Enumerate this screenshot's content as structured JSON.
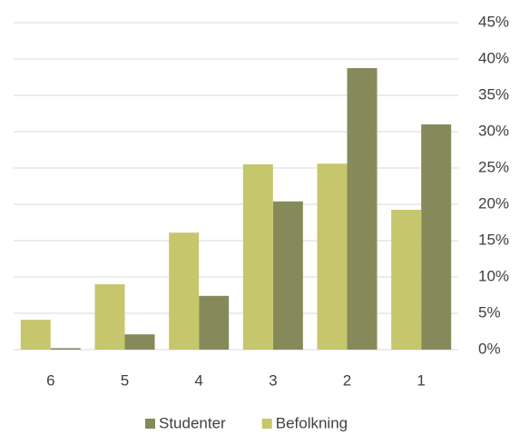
{
  "chart_data": {
    "type": "bar",
    "categories": [
      "6",
      "5",
      "4",
      "3",
      "2",
      "1"
    ],
    "series": [
      {
        "name": "Studenter",
        "color": "#868a5a",
        "values": [
          0.2,
          2.1,
          7.4,
          20.4,
          38.75,
          31.0
        ]
      },
      {
        "name": "Befolkning",
        "color": "#c6c66c",
        "values": [
          4.1,
          9.0,
          16.1,
          25.5,
          25.6,
          19.25
        ]
      }
    ],
    "ylim": [
      0,
      45
    ],
    "yticks": [
      {
        "value": 0,
        "label": "0%"
      },
      {
        "value": 5,
        "label": "5%"
      },
      {
        "value": 10,
        "label": "10%"
      },
      {
        "value": 15,
        "label": "15%"
      },
      {
        "value": 20,
        "label": "20%"
      },
      {
        "value": 25,
        "label": "25%"
      },
      {
        "value": 30,
        "label": "30%"
      },
      {
        "value": 35,
        "label": "35%"
      },
      {
        "value": 40,
        "label": "40%"
      },
      {
        "value": 45,
        "label": "45%"
      }
    ],
    "grid": true
  }
}
